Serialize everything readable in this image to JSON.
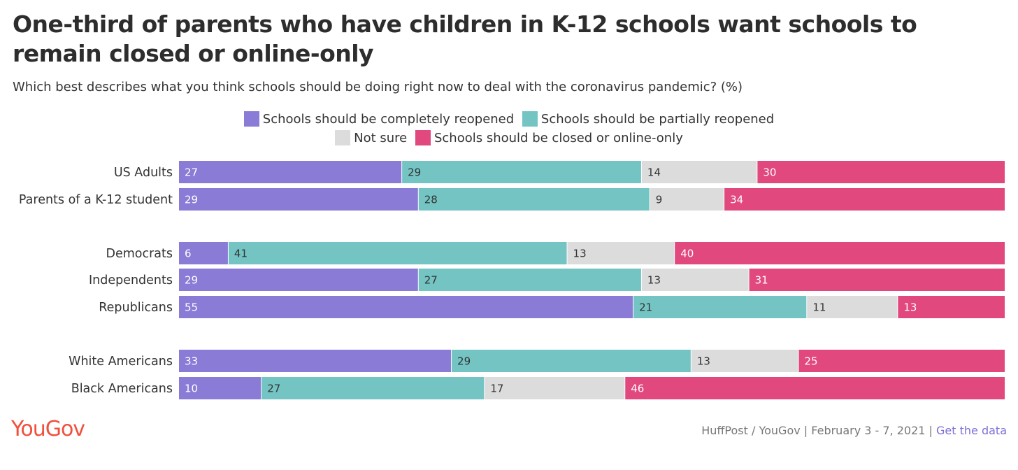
{
  "title": "One-third of parents who have children in K-12 schools want schools to remain closed or online-only",
  "subtitle": "Which best describes what you think schools should be doing right now to deal with the coronavirus pandemic? (%)",
  "legend": [
    {
      "label": "Schools should be completely reopened",
      "color": "#8a7cd6"
    },
    {
      "label": "Schools should be partially reopened",
      "color": "#74c4c4"
    },
    {
      "label": "Not sure",
      "color": "#dcdcdc"
    },
    {
      "label": "Schools should be closed or online-only",
      "color": "#e0487e"
    }
  ],
  "chart_data": {
    "type": "bar",
    "orientation": "horizontal",
    "stacked": true,
    "categories": [
      "US Adults",
      "Parents of a K-12 student",
      "Democrats",
      "Independents",
      "Republicans",
      "White Americans",
      "Black Americans"
    ],
    "groups": [
      [
        0,
        1
      ],
      [
        2,
        3,
        4
      ],
      [
        5,
        6
      ]
    ],
    "series": [
      {
        "name": "Schools should be completely reopened",
        "values": [
          27,
          29,
          6,
          29,
          55,
          33,
          10
        ]
      },
      {
        "name": "Schools should be partially reopened",
        "values": [
          29,
          28,
          41,
          27,
          21,
          29,
          27
        ]
      },
      {
        "name": "Not sure",
        "values": [
          14,
          9,
          13,
          13,
          11,
          13,
          17
        ]
      },
      {
        "name": "Schools should be closed or online-only",
        "values": [
          30,
          34,
          40,
          31,
          13,
          25,
          46
        ]
      }
    ]
  },
  "footer": {
    "logo": "YouGov",
    "source": "HuffPost / YouGov | February 3 - 7, 2021 | ",
    "link": "Get the data"
  }
}
